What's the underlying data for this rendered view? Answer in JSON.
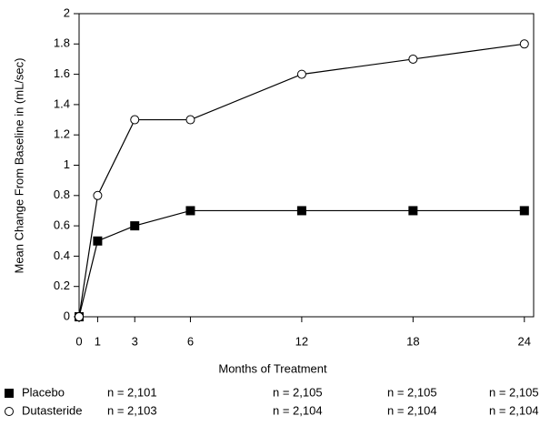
{
  "chart_data": {
    "type": "line",
    "y_label": "Mean Change From Baseline in (mL/sec)",
    "x_label": "Months of Treatment",
    "x": [
      0,
      1,
      3,
      6,
      12,
      18,
      24
    ],
    "xlim": [
      0,
      24.5
    ],
    "xticks": [
      0,
      1,
      3,
      6,
      12,
      18,
      24
    ],
    "ylim": [
      0,
      2
    ],
    "yticks": [
      0,
      0.2,
      0.4,
      0.6,
      0.8,
      1,
      1.2,
      1.4,
      1.6,
      1.8,
      2
    ],
    "series": [
      {
        "name": "Placebo",
        "color": "#000000",
        "marker": "square",
        "filled": true,
        "values": [
          0,
          0.5,
          0.6,
          0.7,
          0.7,
          0.7,
          0.7
        ],
        "n_labels": [
          "n = 2,101",
          "n = 2,105",
          "n = 2,105",
          "n = 2,105"
        ]
      },
      {
        "name": "Dutasteride",
        "color": "#000000",
        "marker": "circle",
        "filled": false,
        "values": [
          0,
          0.8,
          1.3,
          1.3,
          1.6,
          1.7,
          1.8
        ],
        "n_labels": [
          "n = 2,103",
          "n = 2,104",
          "n = 2,104",
          "n = 2,104"
        ]
      }
    ]
  }
}
